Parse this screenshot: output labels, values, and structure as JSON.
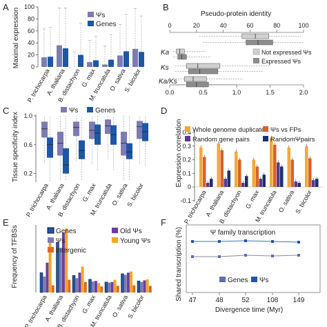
{
  "species": [
    "P. trichocarpa",
    "A. thaliana",
    "B. distachyon",
    "G. max",
    "M. truncatula",
    "O. sativa",
    "S. bicolor"
  ],
  "colors": {
    "psi": "#7d7bb6",
    "genes": "#1f56a6",
    "gray_light": "#cfcfcf",
    "gray_dark": "#8c8c8c",
    "orange": "#f2a93b",
    "rust": "#d9612a",
    "purple": "#5a3a8f",
    "navy": "#1f2e6e",
    "old_psi": "#6b3fa0",
    "young_psi": "#f5a623",
    "intergenic": "#e06b1f"
  },
  "panels": {
    "A": {
      "letter": "A",
      "ylabel": "Maximal expression",
      "yticks": [
        "0",
        "20",
        "40",
        "60",
        "80",
        "100"
      ],
      "legend": [
        "Ψs",
        "Genes"
      ]
    },
    "B": {
      "letter": "B",
      "title": "Pseudo-protein identity",
      "top_ticks": [
        "0",
        "20",
        "40",
        "60",
        "80",
        "100"
      ],
      "bottom_ticks": [
        "0.0",
        "0.5",
        "1.0",
        "1.5",
        "2.0"
      ],
      "row_labels": [
        "Ka",
        "Ks",
        "Ka/Ks"
      ],
      "legend": [
        "Not expressed Ψs",
        "Expressed Ψs"
      ]
    },
    "C": {
      "letter": "C",
      "ylabel": "Tissue specificity index",
      "yticks": [
        "0.2",
        "0.6",
        "1.0"
      ],
      "legend": [
        "Ψs",
        "Genes"
      ]
    },
    "D": {
      "letter": "D",
      "ylabel": "Expression correlation",
      "yticks": [
        "-0.1",
        "0",
        "0.1",
        "0.2",
        "0.3",
        "0.4"
      ],
      "legend": [
        "Whole genome duplicates",
        "Ψs vs FPs",
        "Random gene pairs",
        "RandomΨpairs"
      ]
    },
    "E": {
      "letter": "E",
      "ylabel": "Frequency of TFBSs",
      "legend": [
        "Genes",
        "Old Ψs",
        "Ψs",
        "Young Ψs",
        "Intergenic"
      ]
    },
    "F": {
      "letter": "F",
      "title": "Ψ family transcription",
      "ylabel": "Shared transcription (%)",
      "xlabel": "Divergence time (Myr)",
      "xticks": [
        "47",
        "48",
        "52",
        "108",
        "149"
      ],
      "legend": [
        "Genes",
        "Ψs"
      ]
    }
  },
  "chart_data": [
    {
      "panel": "A",
      "type": "bar",
      "categories": [
        "P. trichocarpa",
        "A. thaliana",
        "B. distachyon",
        "G. max",
        "M. truncatula",
        "O. sativa",
        "S. bicolor"
      ],
      "ylim": [
        0,
        100
      ],
      "series": [
        {
          "name": "Ψs",
          "values": [
            16,
            36,
            0,
            8,
            4,
            19,
            30
          ]
        },
        {
          "name": "Genes",
          "values": [
            17,
            31,
            20,
            11,
            12,
            26,
            25
          ]
        }
      ]
    },
    {
      "panel": "C",
      "type": "box",
      "categories": [
        "P. trichocarpa",
        "A. thaliana",
        "B. distachyon",
        "G. max",
        "M. truncatula",
        "O. sativa",
        "S. bicolor"
      ],
      "series": [
        {
          "name": "Ψs",
          "boxes": [
            [
              0.7,
              0.82,
              0.92
            ],
            [
              0.45,
              0.62,
              0.78
            ],
            [
              0.72,
              0.84,
              0.92
            ],
            [
              0.68,
              0.8,
              0.92
            ],
            [
              0.75,
              0.86,
              0.95
            ],
            [
              0.45,
              0.62,
              0.78
            ],
            [
              0.68,
              0.85,
              0.93
            ]
          ]
        },
        {
          "name": "Genes",
          "boxes": [
            [
              0.42,
              0.6,
              0.7
            ],
            [
              0.2,
              0.32,
              0.55
            ],
            [
              0.4,
              0.52,
              0.66
            ],
            [
              0.6,
              0.76,
              0.88
            ],
            [
              0.6,
              0.74,
              0.87
            ],
            [
              0.4,
              0.5,
              0.62
            ],
            [
              0.65,
              0.78,
              0.9
            ]
          ]
        }
      ]
    },
    {
      "panel": "D",
      "type": "bar",
      "categories": [
        "P. trichocarpa",
        "A. thaliana",
        "B. distachyon",
        "G. max",
        "M. truncatula",
        "O. sativa",
        "S. bicolor"
      ],
      "ylim": [
        -0.1,
        0.4
      ],
      "series": [
        {
          "name": "Whole genome duplicates",
          "values": [
            0.29,
            0.32,
            0.26,
            0.2,
            0.36,
            0.29,
            0.3
          ]
        },
        {
          "name": "Ψs vs FPs",
          "values": [
            0.22,
            0.27,
            0.2,
            0.15,
            0.31,
            0.2,
            0.21
          ]
        },
        {
          "name": "Random gene pairs",
          "values": [
            0.03,
            0.06,
            0.03,
            0.06,
            0.18,
            0.04,
            0.05
          ]
        },
        {
          "name": "RandomΨpairs",
          "values": [
            0.06,
            0.12,
            0.08,
            0.09,
            0.15,
            0.03,
            0.06
          ]
        }
      ]
    },
    {
      "panel": "E",
      "type": "bar",
      "categories": [
        "P. trichocarpa",
        "A. thaliana",
        "B. distachyon",
        "G. max",
        "M. truncatula",
        "O. sativa",
        "S. bicolor"
      ],
      "series": [
        {
          "name": "Genes",
          "values": [
            72,
            182,
            62,
            48,
            38,
            68,
            42
          ]
        },
        {
          "name": "Ψs",
          "values": [
            58,
            162,
            52,
            40,
            36,
            64,
            38
          ]
        },
        {
          "name": "Old Ψs",
          "values": [
            108,
            218,
            72,
            42,
            38,
            72,
            44
          ]
        },
        {
          "name": "Young Ψs",
          "values": [
            192,
            232,
            94,
            34,
            46,
            76,
            48
          ]
        },
        {
          "name": "Intergenic",
          "values": [
            26,
            46,
            38,
            22,
            24,
            26,
            24
          ]
        }
      ]
    },
    {
      "panel": "F",
      "type": "line",
      "x": [
        "47",
        "48",
        "52",
        "108",
        "149"
      ],
      "series": [
        {
          "name": "Genes",
          "values": [
            0.52,
            0.52,
            0.54,
            0.53,
            0.54
          ]
        },
        {
          "name": "Ψs",
          "values": [
            0.74,
            0.74,
            0.75,
            0.74,
            0.73
          ]
        }
      ]
    }
  ]
}
